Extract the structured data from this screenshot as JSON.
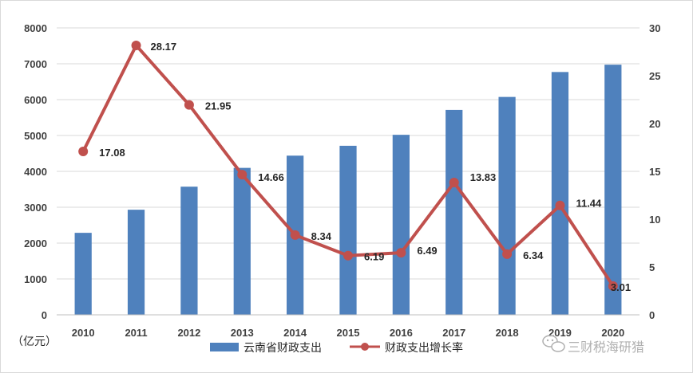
{
  "chart_data": {
    "type": "bar",
    "categories": [
      "2010",
      "2011",
      "2012",
      "2013",
      "2014",
      "2015",
      "2016",
      "2017",
      "2018",
      "2019",
      "2020"
    ],
    "series": [
      {
        "name": "云南省财政支出",
        "type": "bar",
        "axis": "left",
        "values": [
          2286,
          2930,
          3573,
          4097,
          4438,
          4713,
          5019,
          5713,
          6075,
          6770,
          6974
        ]
      },
      {
        "name": "财政支出增长率",
        "type": "line",
        "axis": "right",
        "values": [
          17.08,
          28.17,
          21.95,
          14.66,
          8.34,
          6.19,
          6.49,
          13.83,
          6.34,
          11.44,
          3.01
        ],
        "labels": [
          "17.08",
          "28.17",
          "21.95",
          "14.66",
          "8.34",
          "6.19",
          "6.49",
          "13.83",
          "6.34",
          "11.44",
          "3.01"
        ]
      }
    ],
    "y_left": {
      "min": 0,
      "max": 8000,
      "step": 1000,
      "ticks": [
        "0",
        "1000",
        "2000",
        "3000",
        "4000",
        "5000",
        "6000",
        "7000",
        "8000"
      ]
    },
    "y_right": {
      "min": 0,
      "max": 30,
      "step": 5,
      "ticks": [
        "0",
        "5",
        "10",
        "15",
        "20",
        "25",
        "30"
      ]
    },
    "unit_label": "（亿元）",
    "grid": true,
    "legend_position": "bottom"
  },
  "watermark": {
    "text": "三财税海研猎",
    "icon": "wechat-icon"
  },
  "colors": {
    "bar": "#4f81bd",
    "line": "#c0504d",
    "grid": "#d9d9d9",
    "axis_text": "#404040"
  }
}
